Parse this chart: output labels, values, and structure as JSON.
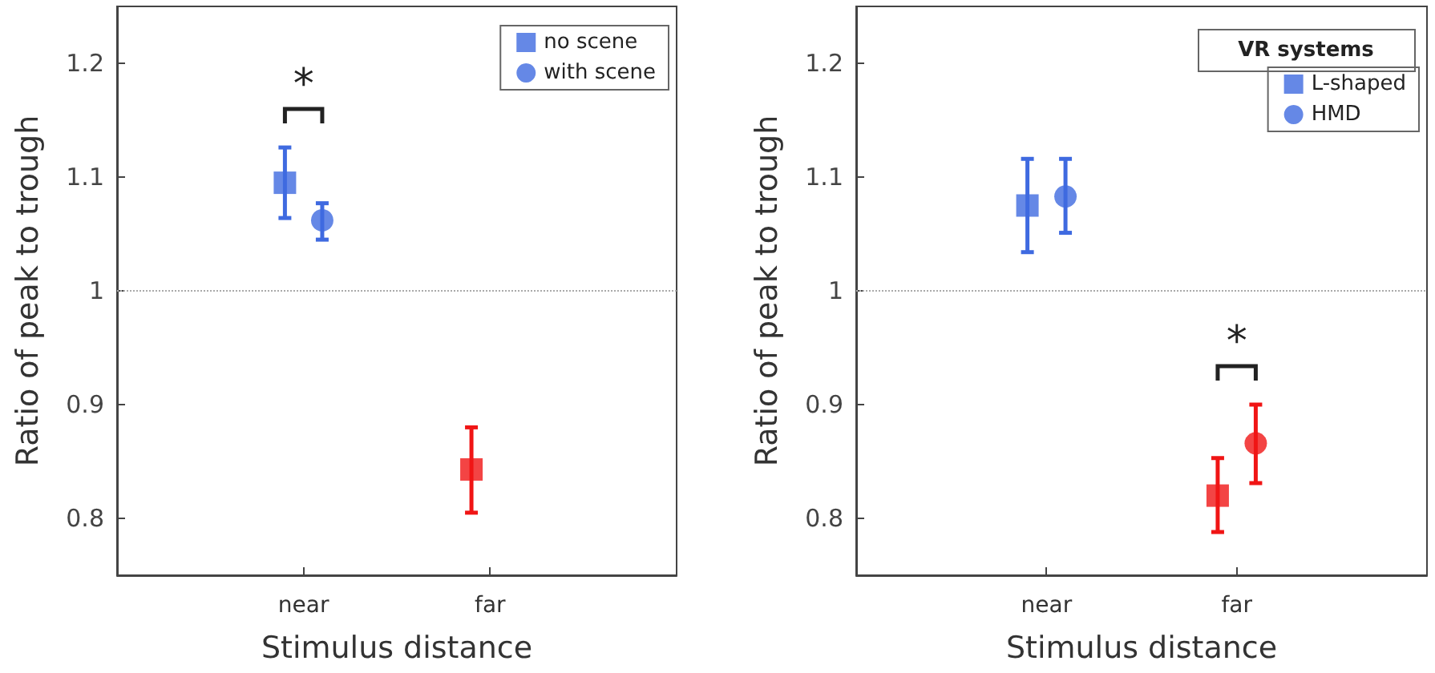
{
  "chart_data": [
    {
      "type": "scatter",
      "xlabel": "Stimulus distance",
      "ylabel": "Ratio of peak to trough",
      "categories": [
        "near",
        "far"
      ],
      "ylim": [
        0.75,
        1.25
      ],
      "yticks": [
        0.8,
        0.9,
        1,
        1.1,
        1.2
      ],
      "grid": false,
      "legend": "top right",
      "series": [
        {
          "name": "no scene",
          "marker": "square",
          "colors": [
            "#3f6ae0",
            "#f01515"
          ],
          "values": [
            1.095,
            0.843
          ],
          "errors": [
            [
              1.064,
              1.126
            ],
            [
              0.805,
              0.88
            ]
          ]
        },
        {
          "name": "with scene",
          "marker": "circle",
          "colors": [
            "#3f6ae0",
            null
          ],
          "values": [
            1.062,
            null
          ],
          "errors": [
            [
              1.045,
              1.077
            ],
            null
          ]
        }
      ],
      "ref_lines": [
        {
          "axis": "y",
          "value": 1,
          "color": "#aaaaaa",
          "line_style": "dotted"
        }
      ],
      "annotations": [
        "*"
      ]
    },
    {
      "type": "scatter",
      "xlabel": "Stimulus distance",
      "ylabel": "Ratio of peak to trough",
      "legend_title": "VR systems",
      "categories": [
        "near",
        "far"
      ],
      "ylim": [
        0.75,
        1.25
      ],
      "yticks": [
        0.8,
        0.9,
        1,
        1.1,
        1.2
      ],
      "grid": false,
      "legend": "top right",
      "series": [
        {
          "name": "L-shaped",
          "marker": "square",
          "colors": [
            "#3f6ae0",
            "#f01515"
          ],
          "values": [
            1.075,
            0.82
          ],
          "errors": [
            [
              1.034,
              1.116
            ],
            [
              0.788,
              0.853
            ]
          ]
        },
        {
          "name": "HMD",
          "marker": "circle",
          "colors": [
            "#3f6ae0",
            "#f01515"
          ],
          "values": [
            1.083,
            0.866
          ],
          "errors": [
            [
              1.051,
              1.116
            ],
            [
              0.831,
              0.9
            ]
          ]
        }
      ],
      "ref_lines": [
        {
          "axis": "y",
          "value": 1,
          "color": "#aaaaaa",
          "line_style": "dotted"
        }
      ],
      "annotations": [
        "*"
      ]
    }
  ]
}
